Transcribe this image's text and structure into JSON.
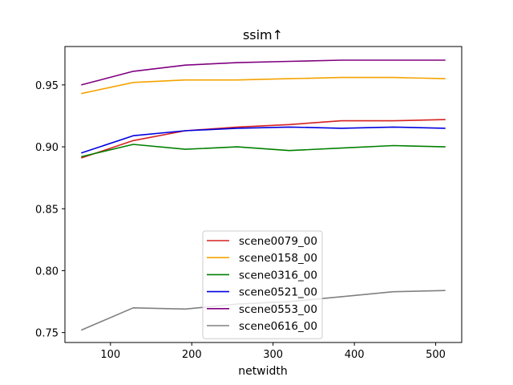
{
  "chart_data": {
    "type": "line",
    "title": "ssim↑",
    "xlabel": "netwidth",
    "ylabel": "",
    "xlim": [
      44,
      532
    ],
    "ylim": [
      0.742,
      0.981
    ],
    "xticks": [
      100,
      200,
      300,
      400,
      500
    ],
    "xtick_labels": [
      "100",
      "200",
      "300",
      "400",
      "500"
    ],
    "yticks": [
      0.75,
      0.8,
      0.85,
      0.9,
      0.95
    ],
    "ytick_labels": [
      "0.75",
      "0.80",
      "0.85",
      "0.90",
      "0.95"
    ],
    "grid": false,
    "legend_position": "lower-center",
    "x": [
      64,
      128,
      192,
      256,
      320,
      384,
      448,
      512
    ],
    "series": [
      {
        "name": "scene0079_00",
        "color": "#d62020",
        "values": [
          0.891,
          0.905,
          0.913,
          0.916,
          0.918,
          0.921,
          0.921,
          0.922
        ]
      },
      {
        "name": "scene0158_00",
        "color": "#f5a300",
        "values": [
          0.943,
          0.952,
          0.954,
          0.954,
          0.955,
          0.956,
          0.956,
          0.955
        ]
      },
      {
        "name": "scene0316_00",
        "color": "#008000",
        "values": [
          0.892,
          0.902,
          0.898,
          0.9,
          0.897,
          0.899,
          0.901,
          0.9
        ]
      },
      {
        "name": "scene0521_00",
        "color": "#0000e0",
        "values": [
          0.895,
          0.909,
          0.913,
          0.915,
          0.916,
          0.915,
          0.916,
          0.915
        ]
      },
      {
        "name": "scene0553_00",
        "color": "#800080",
        "values": [
          0.95,
          0.961,
          0.966,
          0.968,
          0.969,
          0.97,
          0.97,
          0.97
        ]
      },
      {
        "name": "scene0616_00",
        "color": "#808080",
        "values": [
          0.752,
          0.77,
          0.769,
          0.773,
          0.775,
          0.779,
          0.783,
          0.784
        ]
      }
    ]
  }
}
